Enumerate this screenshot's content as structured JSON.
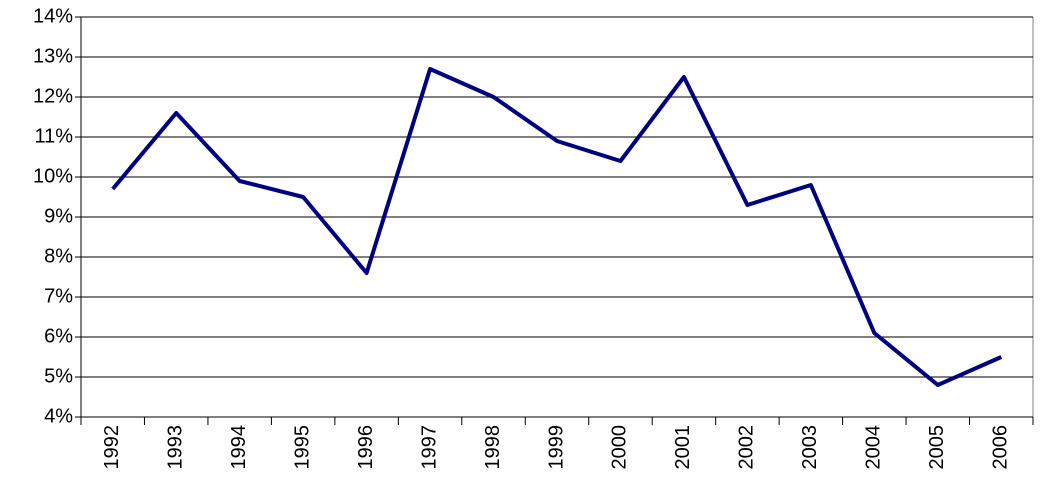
{
  "chart_data": {
    "type": "line",
    "categories": [
      "1992",
      "1993",
      "1994",
      "1995",
      "1996",
      "1997",
      "1998",
      "1999",
      "2000",
      "2001",
      "2002",
      "2003",
      "2004",
      "2005",
      "2006"
    ],
    "values": [
      9.7,
      11.6,
      9.9,
      9.5,
      7.6,
      12.7,
      12.0,
      10.9,
      10.4,
      12.5,
      9.3,
      9.8,
      6.1,
      4.8,
      5.5
    ],
    "color": "#000080",
    "ylim": [
      4,
      14
    ],
    "yticks": [
      {
        "value": 4,
        "label": "4%"
      },
      {
        "value": 5,
        "label": "5%"
      },
      {
        "value": 6,
        "label": "6%"
      },
      {
        "value": 7,
        "label": "7%"
      },
      {
        "value": 8,
        "label": "8%"
      },
      {
        "value": 9,
        "label": "9%"
      },
      {
        "value": 10,
        "label": "10%"
      },
      {
        "value": 11,
        "label": "11%"
      },
      {
        "value": 12,
        "label": "12%"
      },
      {
        "value": 13,
        "label": "13%"
      },
      {
        "value": 14,
        "label": "14%"
      }
    ],
    "grid": true
  }
}
